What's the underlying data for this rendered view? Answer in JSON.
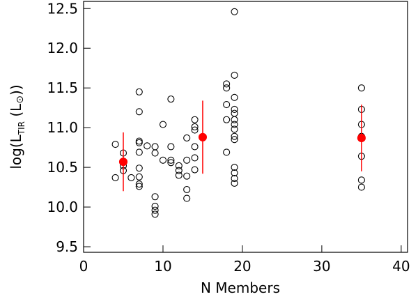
{
  "chart_data": {
    "type": "scatter",
    "x_label": "N Members",
    "y_label_parts": [
      "log(L",
      "TIR",
      " (L",
      "⊙",
      "))"
    ],
    "xlim": [
      0,
      40.8
    ],
    "ylim": [
      9.43,
      12.59
    ],
    "xticks": [
      0,
      10,
      20,
      30,
      40
    ],
    "yticks": [
      9.5,
      {
        "value": 10,
        "label": "10.0"
      },
      10.5,
      {
        "value": 11,
        "label": "11.0"
      },
      11.5,
      {
        "value": 12,
        "label": "12.0"
      },
      12.5
    ],
    "series": [
      {
        "name": "groups",
        "color": "#000000",
        "marker": "open",
        "x": [
          4,
          4,
          5,
          5,
          5,
          6,
          7,
          7,
          7,
          7,
          7,
          7,
          7,
          7,
          7,
          8,
          9,
          9,
          9,
          9,
          9,
          9,
          10,
          10,
          11,
          11,
          11,
          11,
          12,
          12,
          12,
          13,
          13,
          13,
          13,
          13,
          14,
          14,
          14,
          14,
          14,
          14,
          18,
          18,
          18,
          18,
          18,
          19,
          19,
          19,
          19,
          19,
          19,
          19,
          19,
          19,
          19,
          19,
          19,
          19,
          19,
          35,
          35,
          35,
          35,
          35,
          35,
          35
        ],
        "values": [
          10.79,
          10.37,
          10.68,
          10.52,
          10.46,
          10.37,
          11.45,
          11.2,
          10.83,
          10.81,
          10.69,
          10.49,
          10.38,
          10.29,
          10.26,
          10.77,
          10.76,
          10.68,
          10.13,
          10.01,
          9.96,
          9.91,
          11.04,
          10.59,
          11.36,
          10.76,
          10.59,
          10.56,
          10.52,
          10.46,
          10.4,
          10.87,
          10.59,
          10.39,
          10.22,
          10.11,
          11.1,
          11.01,
          10.97,
          10.76,
          10.62,
          10.47,
          11.55,
          11.5,
          11.29,
          11.1,
          10.69,
          12.46,
          11.66,
          11.38,
          11.23,
          11.18,
          11.1,
          11.04,
          10.98,
          10.89,
          10.85,
          10.5,
          10.43,
          10.36,
          10.3,
          11.5,
          11.23,
          11.04,
          10.89,
          10.64,
          10.34,
          10.25
        ]
      },
      {
        "name": "means",
        "color": "#ff0000",
        "marker": "filled",
        "x": [
          5,
          15,
          35
        ],
        "values": [
          10.57,
          10.88,
          10.87
        ],
        "errors": [
          0.37,
          0.46,
          0.42
        ]
      }
    ]
  }
}
